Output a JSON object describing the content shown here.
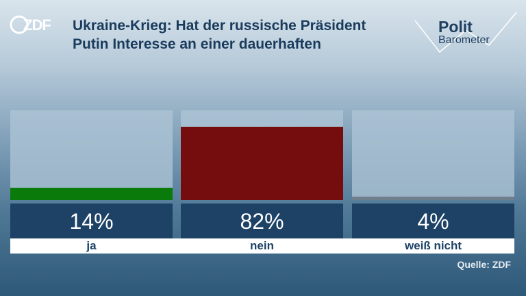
{
  "header": {
    "title_line1": "Ukraine-Krieg: Hat der russische Präsident",
    "title_line2": "Putin Interesse an einer dauerhaften",
    "logo_text": "ZDF",
    "brand_word1": "Polit",
    "brand_word2": "Barometer"
  },
  "source": "Quelle: ZDF",
  "chart_data": {
    "type": "bar",
    "categories": [
      "ja",
      "nein",
      "weiß nicht"
    ],
    "values": [
      14,
      82,
      4
    ],
    "value_labels": [
      "14%",
      "82%",
      "4%"
    ],
    "unit": "%",
    "ylim": [
      0,
      100
    ],
    "colors": [
      "#0a7a0a",
      "#750c0e",
      "#6f7f8c"
    ]
  }
}
